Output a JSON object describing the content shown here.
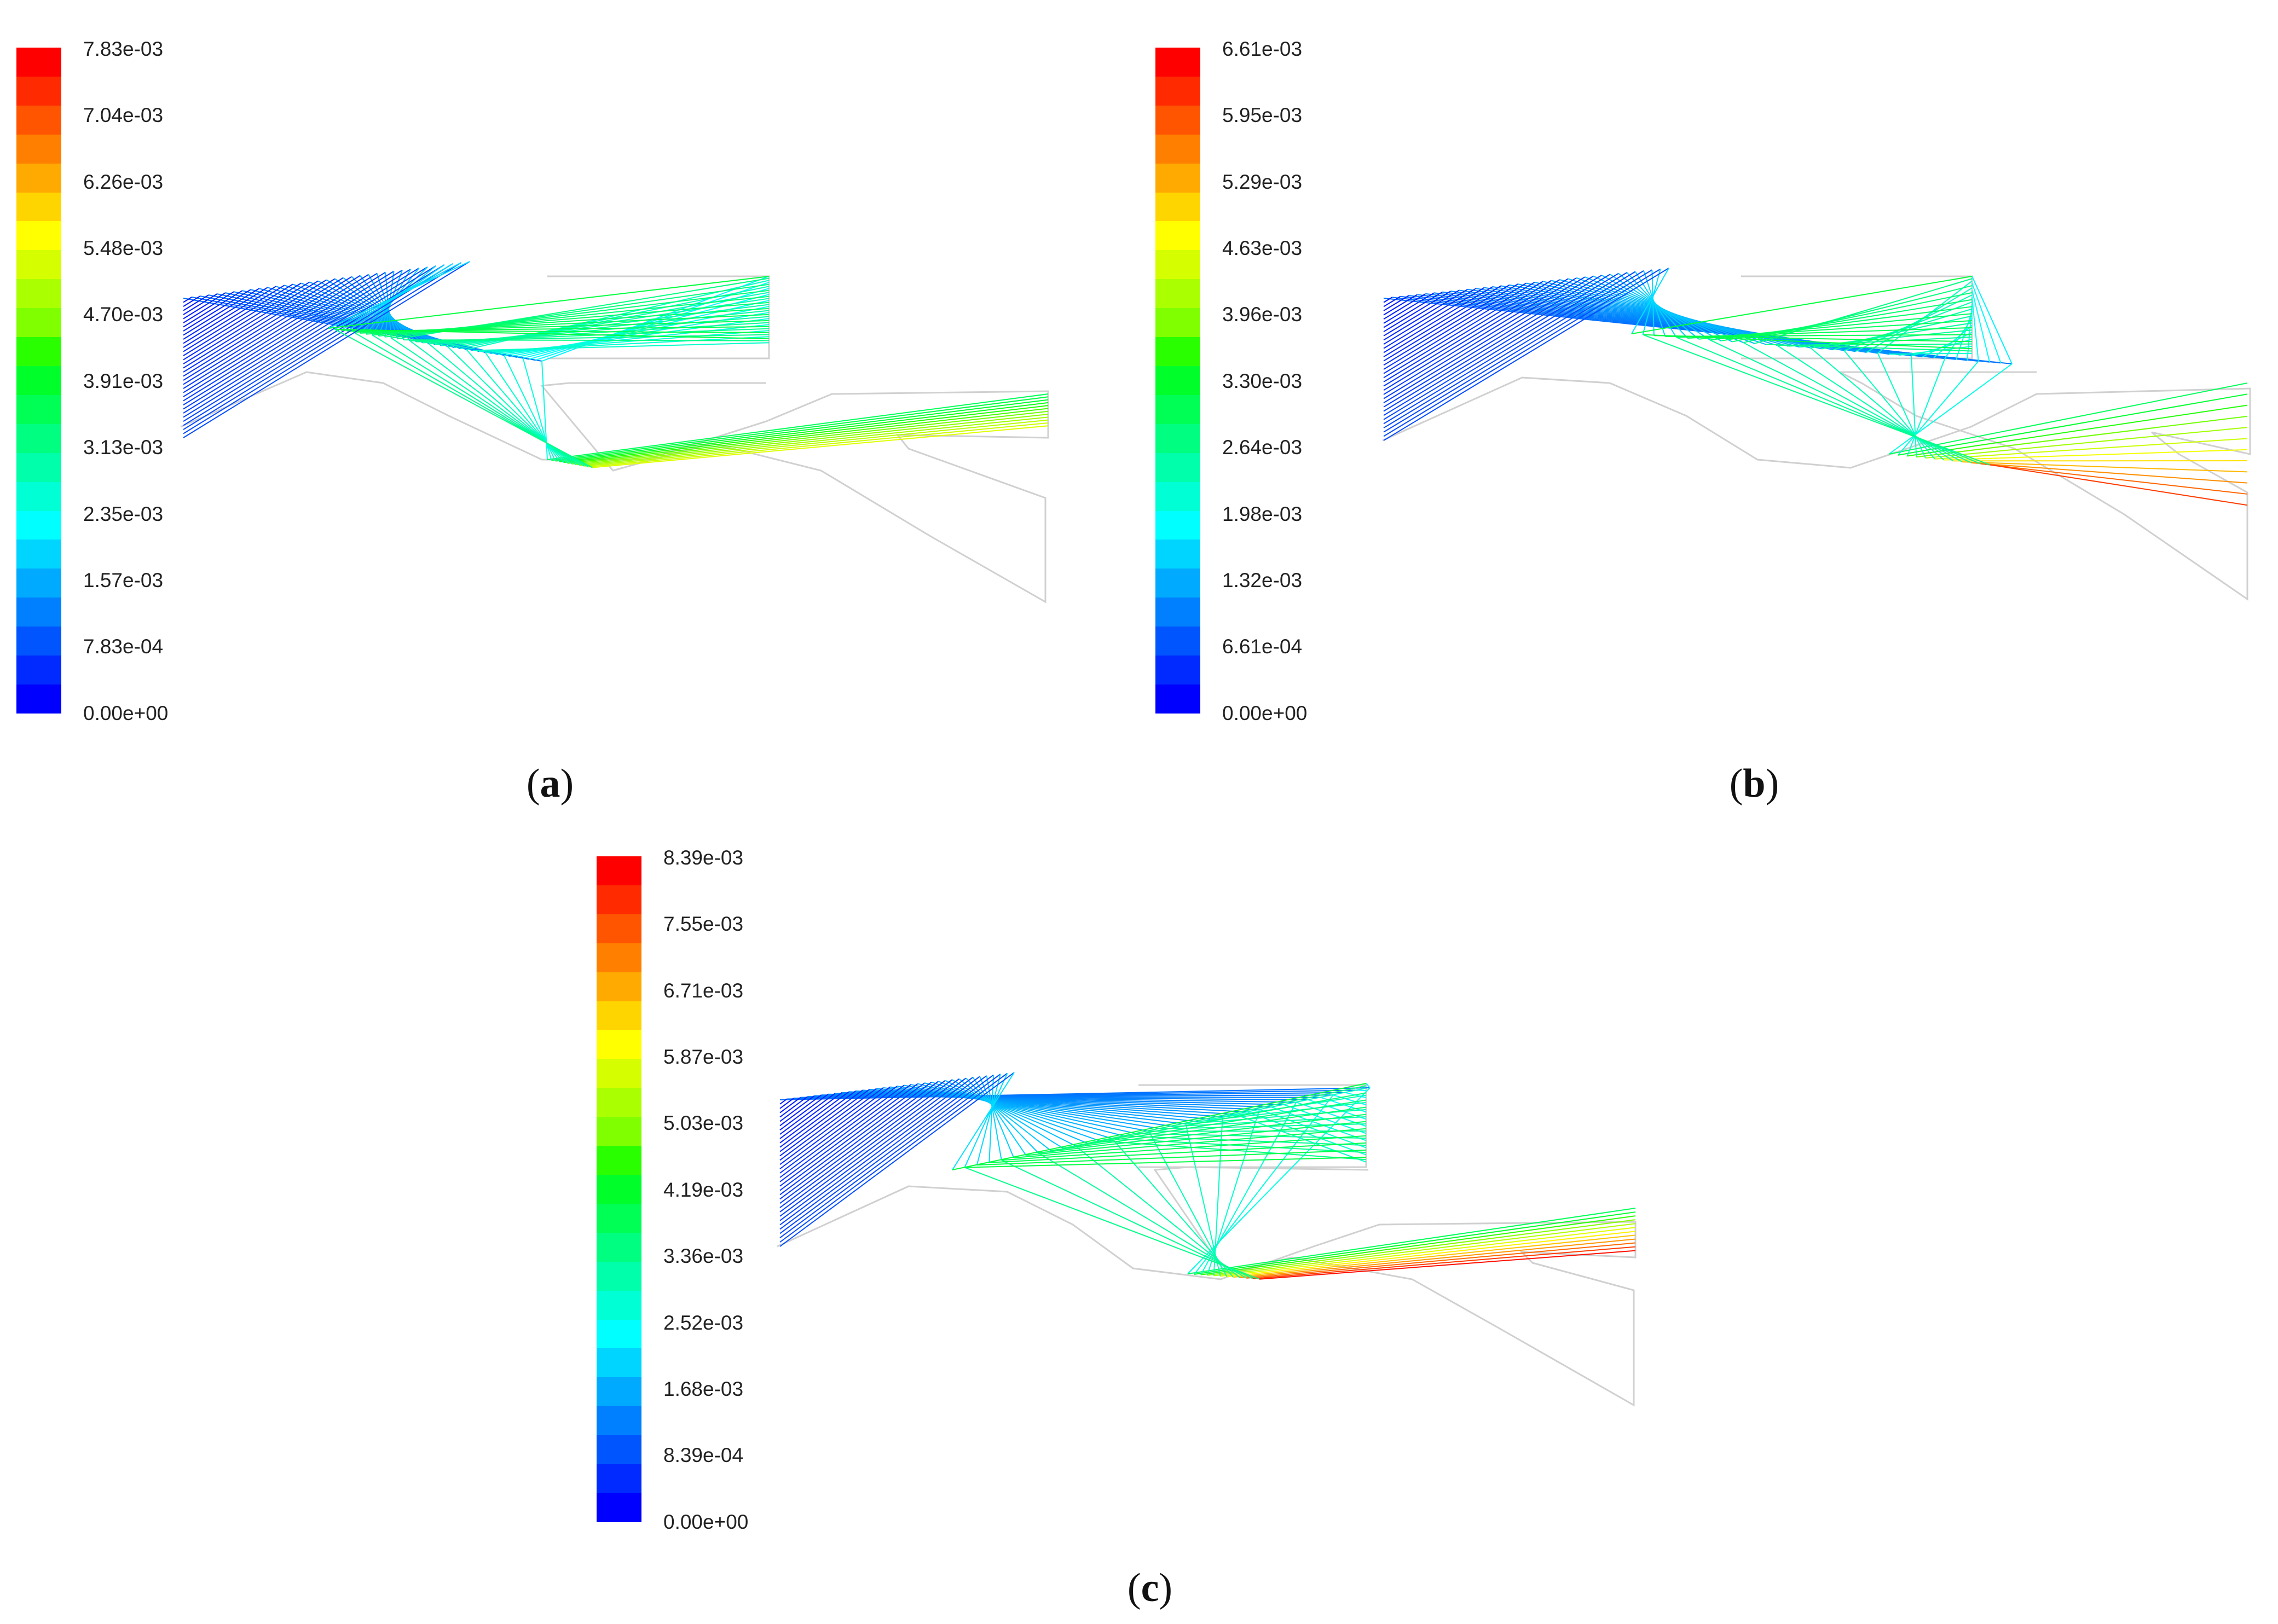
{
  "figure": {
    "panels": [
      {
        "id": "a",
        "caption_letter": "a",
        "legend_labels": [
          "7.83e-03",
          "7.04e-03",
          "6.26e-03",
          "5.48e-03",
          "4.70e-03",
          "3.91e-03",
          "3.13e-03",
          "2.35e-03",
          "1.57e-03",
          "7.83e-04",
          "0.00e+00"
        ]
      },
      {
        "id": "b",
        "caption_letter": "b",
        "legend_labels": [
          "6.61e-03",
          "5.95e-03",
          "5.29e-03",
          "4.63e-03",
          "3.96e-03",
          "3.30e-03",
          "2.64e-03",
          "1.98e-03",
          "1.32e-03",
          "6.61e-04",
          "0.00e+00"
        ]
      },
      {
        "id": "c",
        "caption_letter": "c",
        "legend_labels": [
          "8.39e-03",
          "7.55e-03",
          "6.71e-03",
          "5.87e-03",
          "5.03e-03",
          "4.19e-03",
          "3.36e-03",
          "2.52e-03",
          "1.68e-03",
          "8.39e-04",
          "0.00e+00"
        ]
      }
    ],
    "colormap": [
      "#ff0000",
      "#ff2a00",
      "#ff5500",
      "#ff8000",
      "#ffaa00",
      "#ffd500",
      "#ffff00",
      "#d5ff00",
      "#aaff00",
      "#80ff00",
      "#2aff00",
      "#00ff2a",
      "#00ff55",
      "#00ff80",
      "#00ffaa",
      "#00ffd5",
      "#00ffff",
      "#00d5ff",
      "#00aaff",
      "#0080ff",
      "#0055ff",
      "#002aff",
      "#0000ff"
    ],
    "outline_color": "#d0d0d0"
  }
}
